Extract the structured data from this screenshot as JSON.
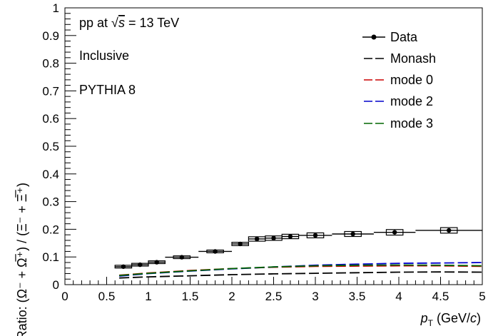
{
  "chart_data": {
    "type": "line",
    "xlim": [
      0,
      5
    ],
    "ylim": [
      0,
      1
    ],
    "x_major_ticks": [
      0,
      0.5,
      1,
      1.5,
      2,
      2.5,
      3,
      3.5,
      4,
      4.5,
      5
    ],
    "y_major_ticks": [
      0,
      0.1,
      0.2,
      0.3,
      0.4,
      0.5,
      0.6,
      0.7,
      0.8,
      0.9,
      1
    ],
    "x_minor_step": 0.1,
    "y_minor_step": 0.02,
    "grid": false,
    "legend_position": "top-right",
    "annotations": {
      "system_prefix": "pp at ",
      "system_sqrt": "√",
      "system_s": "s",
      "system_suffix": " = 13 TeV",
      "class": "Inclusive",
      "generator": "PYTHIA 8"
    },
    "xlabel": {
      "italic": "p",
      "sub": "T",
      "unit_prefix": " (GeV/",
      "unit_italic": "c",
      "unit_suffix": ")"
    },
    "ylabel": "Ratio: (Ω⁻ + Ω̅⁺) / (Ξ⁻ + Ξ̅⁺)",
    "data": {
      "name": "Data",
      "color": "#000000",
      "points": [
        {
          "x": 0.7,
          "y": 0.065,
          "xlo": 0.6,
          "xhi": 0.8,
          "sys": 0.005
        },
        {
          "x": 0.9,
          "y": 0.072,
          "xlo": 0.8,
          "xhi": 1.0,
          "sys": 0.005
        },
        {
          "x": 1.1,
          "y": 0.081,
          "xlo": 1.0,
          "xhi": 1.2,
          "sys": 0.005
        },
        {
          "x": 1.4,
          "y": 0.099,
          "xlo": 1.2,
          "xhi": 1.6,
          "sys": 0.005
        },
        {
          "x": 1.8,
          "y": 0.12,
          "xlo": 1.6,
          "xhi": 2.0,
          "sys": 0.005
        },
        {
          "x": 2.1,
          "y": 0.147,
          "xlo": 2.0,
          "xhi": 2.2,
          "sys": 0.006
        },
        {
          "x": 2.3,
          "y": 0.165,
          "xlo": 2.2,
          "xhi": 2.4,
          "sys": 0.008
        },
        {
          "x": 2.5,
          "y": 0.168,
          "xlo": 2.4,
          "xhi": 2.6,
          "sys": 0.008
        },
        {
          "x": 2.7,
          "y": 0.174,
          "xlo": 2.6,
          "xhi": 2.8,
          "sys": 0.008
        },
        {
          "x": 3.0,
          "y": 0.178,
          "xlo": 2.8,
          "xhi": 3.2,
          "sys": 0.009
        },
        {
          "x": 3.45,
          "y": 0.183,
          "xlo": 3.2,
          "xhi": 3.7,
          "sys": 0.009
        },
        {
          "x": 3.95,
          "y": 0.189,
          "xlo": 3.7,
          "xhi": 4.2,
          "sys": 0.01
        },
        {
          "x": 4.6,
          "y": 0.196,
          "xlo": 4.2,
          "xhi": 5.0,
          "sys": 0.01
        }
      ],
      "box_half_width": 0.1
    },
    "series": [
      {
        "name": "Monash",
        "color": "#000000",
        "x": [
          0.65,
          1.0,
          1.5,
          2.0,
          2.5,
          3.0,
          3.5,
          4.0,
          4.5,
          5.0
        ],
        "y": [
          0.024,
          0.028,
          0.032,
          0.036,
          0.039,
          0.041,
          0.043,
          0.045,
          0.046,
          0.045
        ]
      },
      {
        "name": "mode 0",
        "color": "#cc0000",
        "x": [
          0.65,
          1.0,
          1.5,
          2.0,
          2.5,
          3.0,
          3.5,
          4.0,
          4.5,
          5.0
        ],
        "y": [
          0.034,
          0.042,
          0.051,
          0.058,
          0.063,
          0.066,
          0.067,
          0.068,
          0.068,
          0.066
        ]
      },
      {
        "name": "mode 2",
        "color": "#0000cc",
        "x": [
          0.65,
          1.0,
          1.5,
          2.0,
          2.5,
          3.0,
          3.5,
          4.0,
          4.5,
          5.0
        ],
        "y": [
          0.031,
          0.04,
          0.049,
          0.057,
          0.064,
          0.07,
          0.074,
          0.077,
          0.078,
          0.08
        ]
      },
      {
        "name": "mode 3",
        "color": "#006600",
        "x": [
          0.65,
          1.0,
          1.5,
          2.0,
          2.5,
          3.0,
          3.5,
          4.0,
          4.5,
          5.0
        ],
        "y": [
          0.033,
          0.041,
          0.05,
          0.058,
          0.064,
          0.068,
          0.07,
          0.071,
          0.07,
          0.068
        ]
      }
    ]
  }
}
